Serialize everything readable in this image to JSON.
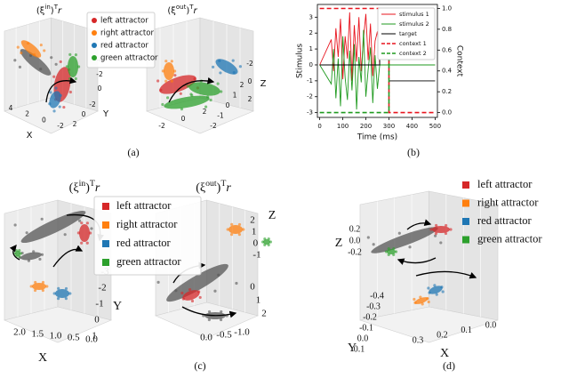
{
  "panels": [
    {
      "caption": "(a)",
      "legend": [
        {
          "label": "left attractor",
          "color": "#d62728"
        },
        {
          "label": "right attractor",
          "color": "#ff7f0e"
        },
        {
          "label": "red attractor",
          "color": "#1f77b4"
        },
        {
          "label": "green attractor",
          "color": "#2ca02c"
        }
      ],
      "plots": [
        {
          "title": [
            "(ξ",
            "in",
            ")",
            "T",
            "r"
          ],
          "x_label": "X",
          "x_ticks": [
            "4",
            "2",
            "0",
            "-2"
          ],
          "y_label": "Y",
          "y_ticks": [
            "2",
            "0",
            "-2"
          ],
          "z_ticks": [
            "0",
            "-2",
            "-4"
          ]
        },
        {
          "title": [
            "(ξ",
            "out",
            ")",
            "T",
            "r"
          ],
          "x_ticks": [
            "-2",
            "0",
            "2"
          ],
          "y_ticks": [
            "-2",
            "-1",
            "0",
            "1",
            "2"
          ],
          "z_label": "Z",
          "z_ticks": [
            "2",
            "0",
            "-2"
          ]
        }
      ]
    },
    {
      "caption": "(b)",
      "chart": {
        "type": "line",
        "x_label": "Time (ms)",
        "y_label": "Stimulus",
        "y2_label": "Context",
        "xlim": [
          -10,
          510
        ],
        "ylim": [
          -3.3,
          3.8
        ],
        "y2lim": [
          -0.046,
          1.038
        ],
        "xticks": [
          0,
          100,
          200,
          300,
          400,
          500
        ],
        "yticks": [
          -3,
          -2,
          -1,
          0,
          1,
          2,
          3
        ],
        "y2ticks": [
          {
            "value": 0,
            "label": "0.0"
          },
          {
            "value": 0.2,
            "label": "0.2"
          },
          {
            "value": 0.4,
            "label": "0.4"
          },
          {
            "value": 0.6,
            "label": "0.6"
          },
          {
            "value": 0.8,
            "label": "0.8"
          },
          {
            "value": 1,
            "label": "1.0"
          }
        ],
        "legend_position": "upper right",
        "series": [
          {
            "name": "stimulus 1",
            "color": "#e8141e",
            "dashed": false,
            "x": [
              0,
              50,
              60,
              70,
              80,
              90,
              100,
              110,
              120,
              130,
              140,
              150,
              160,
              170,
              180,
              190,
              200,
              210,
              220,
              230,
              240,
              250,
              260,
              500
            ],
            "values": [
              0,
              1.6,
              -0.4,
              2.3,
              0.5,
              2.9,
              -0.9,
              1.8,
              0.4,
              3.3,
              -1.0,
              2.5,
              0.2,
              3.0,
              -0.4,
              1.7,
              3.2,
              0.3,
              2.6,
              -0.7,
              1.5,
              2.1,
              0,
              0
            ]
          },
          {
            "name": "stimulus 2",
            "color": "#1f9a1f",
            "dashed": false,
            "x": [
              0,
              50,
              60,
              70,
              80,
              90,
              100,
              110,
              120,
              130,
              140,
              150,
              160,
              170,
              180,
              190,
              200,
              210,
              220,
              230,
              240,
              250,
              260,
              500
            ],
            "values": [
              0,
              -1.2,
              1.0,
              -2.1,
              0.4,
              -2.6,
              1.8,
              -0.8,
              -2.2,
              0.9,
              -1.6,
              1.3,
              -2.8,
              0.5,
              -1.1,
              2.2,
              -2.0,
              -0.3,
              1.1,
              -2.4,
              0.6,
              -1.5,
              0,
              0
            ]
          },
          {
            "name": "target",
            "color": "#000000",
            "dashed": false,
            "x": [
              0,
              260,
              260,
              300,
              300,
              500
            ],
            "values": [
              0,
              0,
              1,
              1,
              -1,
              -1
            ]
          },
          {
            "name": "context 1",
            "color": "#e8141e",
            "dashed": true,
            "axis": "y2",
            "x": [
              0,
              300,
              300,
              500
            ],
            "values": [
              1,
              1,
              0,
              0
            ]
          },
          {
            "name": "context 2",
            "color": "#1f9a1f",
            "dashed": true,
            "axis": "y2",
            "x": [
              0,
              300,
              300,
              500
            ],
            "values": [
              0,
              0,
              1,
              1
            ]
          }
        ]
      }
    },
    {
      "caption": "(c)",
      "legend": [
        {
          "label": "left attractor",
          "color": "#d62728"
        },
        {
          "label": "right attractor",
          "color": "#ff7f0e"
        },
        {
          "label": "red attractor",
          "color": "#1f77b4"
        },
        {
          "label": "green attractor",
          "color": "#2ca02c"
        }
      ],
      "plots": [
        {
          "title": [
            "(ξ",
            "in",
            ")",
            "T",
            "r"
          ],
          "x_label": "X",
          "x_ticks": [
            "2.0",
            "1.5",
            "1.0",
            "0.5",
            "0.0"
          ],
          "y_label": "Y",
          "y_ticks": [
            "1",
            "0",
            "-1",
            "-2",
            "-3"
          ]
        },
        {
          "title": [
            "(ξ",
            "out",
            ")",
            "T",
            "r"
          ],
          "x_ticks": [
            "0.0",
            "-0.5",
            "-1.0"
          ],
          "y_ticks": [
            "0",
            "1",
            "2"
          ],
          "z_label": "Z",
          "z_ticks": [
            "2",
            "1",
            "0",
            "-1"
          ]
        }
      ]
    },
    {
      "caption": "(d)",
      "legend": [
        {
          "label": "left attractor",
          "color": "#d62728"
        },
        {
          "label": "right attractor",
          "color": "#ff7f0e"
        },
        {
          "label": "red attractor",
          "color": "#1f77b4"
        },
        {
          "label": "green attractor",
          "color": "#2ca02c"
        }
      ],
      "plots": [
        {
          "x_label": "X",
          "x_ticks": [
            "0.3",
            "0.2",
            "0.1",
            "0.0"
          ],
          "y_label": "Y",
          "y_ticks": [
            "-0.4",
            "-0.3",
            "-0.2",
            "-0.1",
            "0.0",
            "0.1"
          ],
          "z_label": "Z",
          "z_ticks": [
            "0.2",
            "0.0",
            "-0.2"
          ]
        }
      ]
    }
  ]
}
